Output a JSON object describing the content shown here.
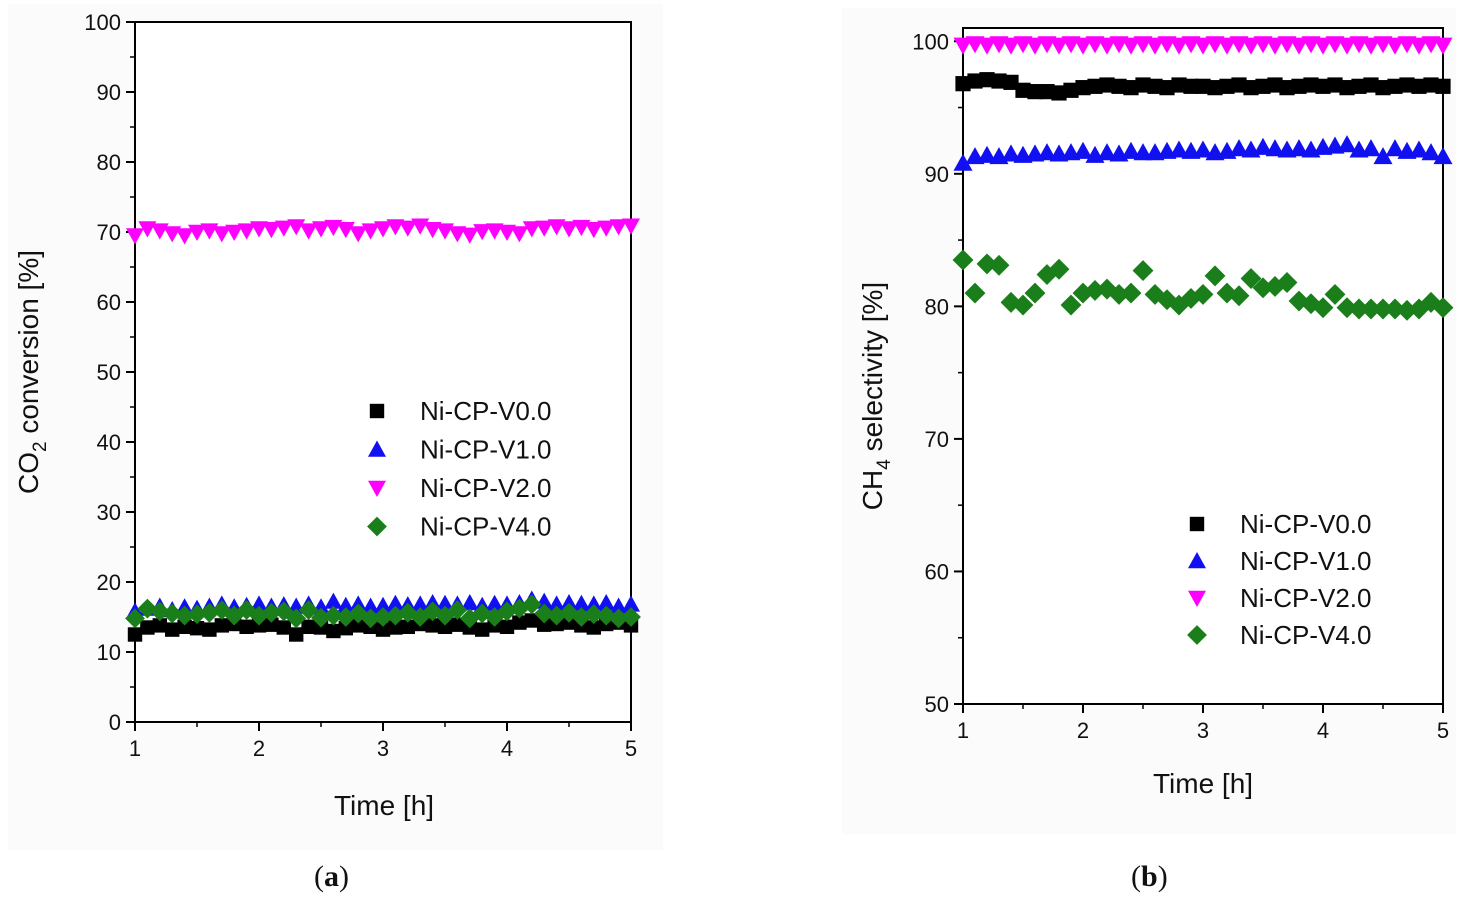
{
  "chart_data": [
    {
      "type": "scatter",
      "panel_label": "a",
      "xlabel": "Time [h]",
      "ylabel": {
        "prefix": "CO",
        "subscript": "2",
        "suffix": " conversion [%]"
      },
      "xlim": [
        1,
        5
      ],
      "ylim": [
        0,
        100
      ],
      "xticks": [
        1,
        2,
        3,
        4,
        5
      ],
      "yticks": [
        0,
        10,
        20,
        30,
        40,
        50,
        60,
        70,
        80,
        90,
        100
      ],
      "legend_position": "center-right",
      "x": [
        1.0,
        1.1,
        1.2,
        1.3,
        1.4,
        1.5,
        1.6,
        1.7,
        1.8,
        1.9,
        2.0,
        2.1,
        2.2,
        2.3,
        2.4,
        2.5,
        2.6,
        2.7,
        2.8,
        2.9,
        3.0,
        3.1,
        3.2,
        3.3,
        3.4,
        3.5,
        3.6,
        3.7,
        3.8,
        3.9,
        4.0,
        4.1,
        4.2,
        4.3,
        4.4,
        4.5,
        4.6,
        4.7,
        4.8,
        4.9,
        5.0
      ],
      "series": [
        {
          "name": "Ni-CP-V0.0",
          "marker": "square",
          "color": "#000000",
          "values": [
            12.5,
            13.5,
            13.8,
            13.2,
            13.6,
            13.4,
            13.2,
            13.8,
            14.0,
            13.6,
            13.8,
            13.9,
            13.5,
            12.5,
            13.6,
            13.5,
            13.0,
            13.4,
            13.8,
            13.6,
            13.2,
            13.5,
            13.6,
            14.0,
            13.8,
            13.6,
            13.9,
            13.5,
            13.2,
            13.8,
            13.6,
            14.2,
            14.5,
            13.9,
            14.0,
            14.2,
            13.8,
            13.5,
            14.0,
            14.2,
            13.8
          ]
        },
        {
          "name": "Ni-CP-V1.0",
          "marker": "triangle-up",
          "color": "#1010f0",
          "values": [
            15.8,
            16.2,
            16.5,
            16.0,
            16.4,
            16.2,
            16.5,
            16.8,
            16.4,
            16.6,
            16.8,
            16.5,
            16.7,
            16.5,
            16.8,
            16.4,
            17.2,
            16.6,
            16.8,
            16.5,
            16.6,
            16.9,
            16.7,
            16.8,
            17.0,
            16.9,
            16.8,
            17.0,
            16.6,
            16.9,
            16.8,
            17.0,
            17.5,
            17.2,
            16.8,
            17.0,
            16.9,
            16.8,
            17.0,
            16.5,
            16.8
          ]
        },
        {
          "name": "Ni-CP-V2.0",
          "marker": "triangle-down",
          "color": "#ff00ff",
          "values": [
            69.5,
            70.5,
            70.2,
            69.8,
            69.5,
            70.0,
            70.2,
            69.8,
            70.0,
            70.2,
            70.5,
            70.4,
            70.6,
            70.8,
            70.2,
            70.5,
            70.7,
            70.4,
            69.8,
            70.2,
            70.5,
            70.8,
            70.6,
            70.9,
            70.4,
            70.2,
            69.8,
            69.6,
            70.1,
            70.2,
            70.0,
            69.8,
            70.5,
            70.6,
            70.8,
            70.5,
            70.7,
            70.4,
            70.6,
            70.8,
            70.9
          ]
        },
        {
          "name": "Ni-CP-V4.0",
          "marker": "diamond",
          "color": "#1a7f1a",
          "values": [
            14.8,
            16.2,
            15.8,
            15.5,
            15.2,
            15.4,
            15.6,
            16.0,
            15.2,
            16.0,
            15.2,
            15.6,
            15.8,
            14.8,
            16.0,
            14.9,
            15.2,
            15.0,
            15.5,
            14.8,
            15.0,
            15.2,
            15.6,
            15.0,
            15.8,
            15.2,
            16.0,
            14.8,
            15.5,
            15.0,
            15.8,
            16.2,
            16.8,
            15.5,
            15.2,
            15.6,
            15.0,
            15.4,
            15.2,
            14.8,
            15.0
          ]
        }
      ]
    },
    {
      "type": "scatter",
      "panel_label": "b",
      "xlabel": "Time [h]",
      "ylabel": {
        "prefix": "CH",
        "subscript": "4",
        "suffix": " selectivity [%]"
      },
      "xlim": [
        1,
        5
      ],
      "ylim": [
        50,
        101
      ],
      "xticks": [
        1,
        2,
        3,
        4,
        5
      ],
      "yticks": [
        50,
        60,
        70,
        80,
        90,
        100
      ],
      "legend_position": "lower-right",
      "x": [
        1.0,
        1.1,
        1.2,
        1.3,
        1.4,
        1.5,
        1.6,
        1.7,
        1.8,
        1.9,
        2.0,
        2.1,
        2.2,
        2.3,
        2.4,
        2.5,
        2.6,
        2.7,
        2.8,
        2.9,
        3.0,
        3.1,
        3.2,
        3.3,
        3.4,
        3.5,
        3.6,
        3.7,
        3.8,
        3.9,
        4.0,
        4.1,
        4.2,
        4.3,
        4.4,
        4.5,
        4.6,
        4.7,
        4.8,
        4.9,
        5.0
      ],
      "series": [
        {
          "name": "Ni-CP-V0.0",
          "marker": "square",
          "color": "#000000",
          "values": [
            96.8,
            97.0,
            97.1,
            97.0,
            96.9,
            96.3,
            96.2,
            96.2,
            96.1,
            96.3,
            96.5,
            96.6,
            96.7,
            96.6,
            96.5,
            96.7,
            96.6,
            96.5,
            96.7,
            96.6,
            96.6,
            96.5,
            96.6,
            96.7,
            96.5,
            96.6,
            96.7,
            96.5,
            96.6,
            96.7,
            96.6,
            96.7,
            96.5,
            96.6,
            96.7,
            96.5,
            96.6,
            96.7,
            96.6,
            96.7,
            96.6
          ]
        },
        {
          "name": "Ni-CP-V1.0",
          "marker": "triangle-up",
          "color": "#1010f0",
          "values": [
            90.8,
            91.3,
            91.4,
            91.3,
            91.5,
            91.4,
            91.5,
            91.6,
            91.5,
            91.6,
            91.7,
            91.4,
            91.6,
            91.5,
            91.7,
            91.6,
            91.6,
            91.7,
            91.8,
            91.7,
            91.8,
            91.6,
            91.7,
            91.9,
            91.8,
            92.0,
            91.9,
            91.8,
            91.9,
            91.8,
            92.0,
            92.1,
            92.2,
            91.8,
            91.9,
            91.3,
            91.9,
            91.7,
            91.8,
            91.6,
            91.3
          ]
        },
        {
          "name": "Ni-CP-V2.0",
          "marker": "triangle-down",
          "color": "#ff00ff",
          "values": [
            99.7,
            99.8,
            99.7,
            99.8,
            99.7,
            99.8,
            99.7,
            99.8,
            99.7,
            99.8,
            99.7,
            99.8,
            99.7,
            99.8,
            99.7,
            99.8,
            99.7,
            99.8,
            99.7,
            99.8,
            99.7,
            99.8,
            99.7,
            99.8,
            99.7,
            99.8,
            99.7,
            99.8,
            99.7,
            99.8,
            99.7,
            99.8,
            99.7,
            99.8,
            99.7,
            99.8,
            99.7,
            99.8,
            99.7,
            99.8,
            99.7
          ]
        },
        {
          "name": "Ni-CP-V4.0",
          "marker": "diamond",
          "color": "#1a7f1a",
          "values": [
            83.5,
            81.0,
            83.2,
            83.1,
            80.3,
            80.1,
            81.0,
            82.4,
            82.8,
            80.1,
            81.0,
            81.2,
            81.3,
            80.9,
            81.0,
            82.7,
            80.9,
            80.5,
            80.1,
            80.6,
            80.9,
            82.3,
            81.0,
            80.8,
            82.1,
            81.4,
            81.5,
            81.8,
            80.4,
            80.2,
            79.9,
            80.9,
            79.9,
            79.8,
            79.8,
            79.8,
            79.8,
            79.7,
            79.8,
            80.3,
            79.9
          ]
        }
      ]
    }
  ],
  "captions": {
    "a": "a",
    "b": "b"
  }
}
